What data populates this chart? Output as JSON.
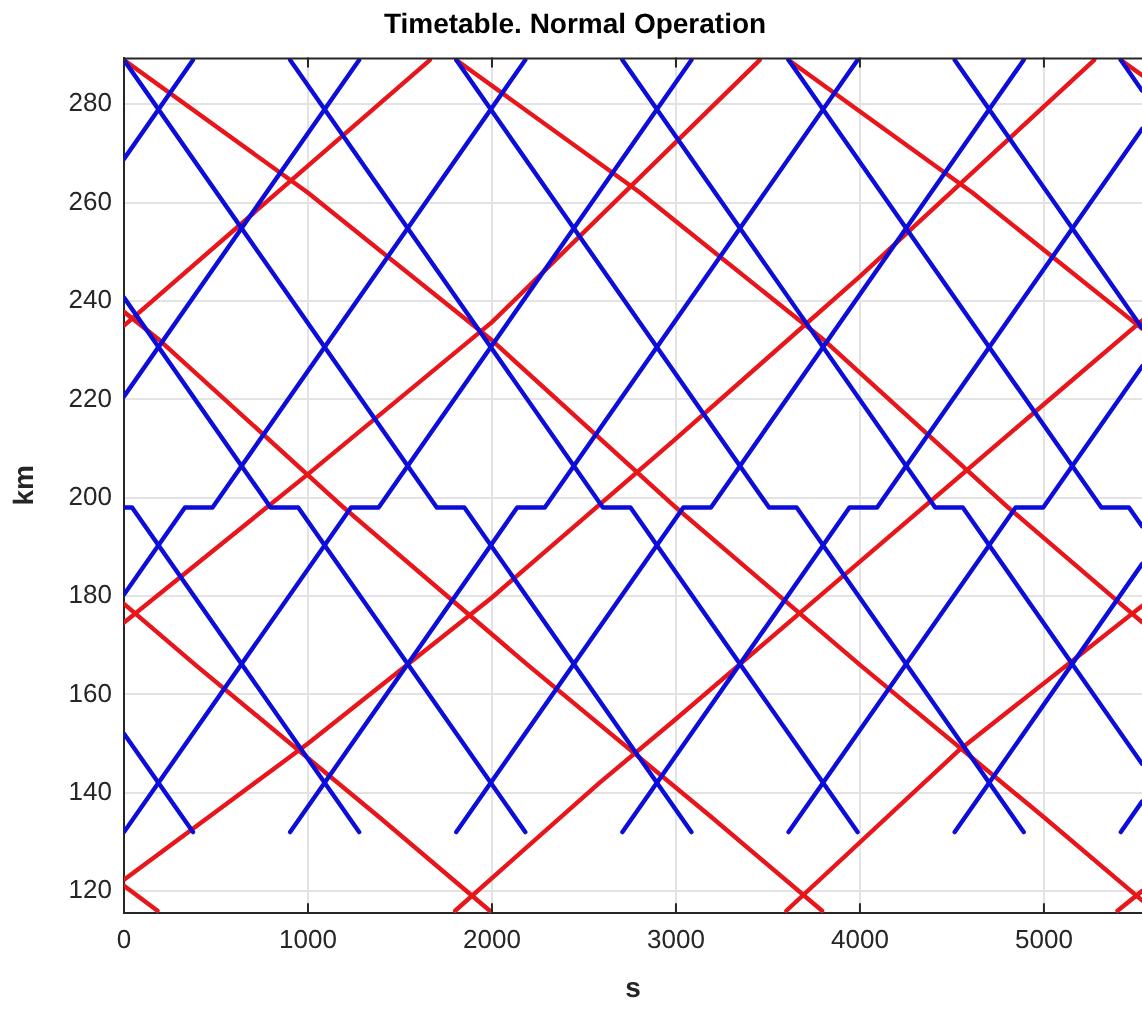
{
  "chart_data": {
    "type": "line",
    "title": "Timetable. Normal Operation",
    "xlabel": "s",
    "ylabel": "km",
    "xlim": [
      0,
      5533
    ],
    "ylim": [
      115.5,
      289.5
    ],
    "xticks": [
      0,
      1000,
      2000,
      3000,
      4000,
      5000
    ],
    "yticks": [
      120,
      140,
      160,
      180,
      200,
      220,
      240,
      260,
      280
    ],
    "grid": true,
    "legend": false,
    "line_style": "solid",
    "series": [
      {
        "color": "#0d0dd9",
        "x": [
          0,
          375
        ],
        "values": [
          152.0,
          132
        ]
      },
      {
        "color": "#0d0dd9",
        "x": [
          0,
          44,
          1278
        ],
        "values": [
          198,
          198,
          132
        ]
      },
      {
        "color": "#0d0dd9",
        "x": [
          0,
          797,
          947,
          2181
        ],
        "values": [
          240.7,
          198,
          198,
          132
        ]
      },
      {
        "color": "#0d0dd9",
        "x": [
          0,
          1700,
          1850,
          3084
        ],
        "values": [
          289,
          198,
          198,
          132
        ]
      },
      {
        "color": "#0d0dd9",
        "x": [
          903,
          2603,
          2753,
          3987
        ],
        "values": [
          289,
          198,
          198,
          132
        ]
      },
      {
        "color": "#0d0dd9",
        "x": [
          1806,
          3506,
          3656,
          4890
        ],
        "values": [
          289,
          198,
          198,
          132
        ]
      },
      {
        "color": "#0d0dd9",
        "x": [
          2709,
          4409,
          4559,
          5533
        ],
        "values": [
          289,
          198,
          198,
          145.9
        ]
      },
      {
        "color": "#0d0dd9",
        "x": [
          3612,
          5312,
          5462,
          5533
        ],
        "values": [
          289,
          198,
          198,
          194.2
        ]
      },
      {
        "color": "#0d0dd9",
        "x": [
          4515,
          5533
        ],
        "values": [
          289,
          234.5
        ]
      },
      {
        "color": "#0d0dd9",
        "x": [
          5418,
          5533
        ],
        "values": [
          289,
          282.8
        ]
      },
      {
        "color": "#0d0dd9",
        "x": [
          0,
          375
        ],
        "values": [
          268.9,
          289
        ]
      },
      {
        "color": "#0d0dd9",
        "x": [
          0,
          1278
        ],
        "values": [
          220.6,
          289
        ]
      },
      {
        "color": "#0d0dd9",
        "x": [
          0,
          331,
          481,
          2181
        ],
        "values": [
          180.3,
          198,
          198,
          289
        ]
      },
      {
        "color": "#0d0dd9",
        "x": [
          0,
          1234,
          1384,
          3084
        ],
        "values": [
          132,
          198,
          198,
          289
        ]
      },
      {
        "color": "#0d0dd9",
        "x": [
          903,
          2137,
          2287,
          3987
        ],
        "values": [
          132,
          198,
          198,
          289
        ]
      },
      {
        "color": "#0d0dd9",
        "x": [
          1806,
          3040,
          3190,
          4890
        ],
        "values": [
          132,
          198,
          198,
          289
        ]
      },
      {
        "color": "#0d0dd9",
        "x": [
          2709,
          3943,
          4093,
          5533
        ],
        "values": [
          132,
          198,
          198,
          275.0
        ]
      },
      {
        "color": "#0d0dd9",
        "x": [
          3612,
          4846,
          4996,
          5533
        ],
        "values": [
          132,
          198,
          198,
          226.7
        ]
      },
      {
        "color": "#0d0dd9",
        "x": [
          4515,
          5533
        ],
        "values": [
          132,
          186.5
        ]
      },
      {
        "color": "#0d0dd9",
        "x": [
          5418,
          5533
        ],
        "values": [
          132,
          138.2
        ]
      },
      {
        "color": "#e8161b",
        "x": [
          0,
          182
        ],
        "values": [
          121.1,
          116
        ]
      },
      {
        "color": "#e8161b",
        "x": [
          0,
          388,
          1388,
          1988
        ],
        "values": [
          178.4,
          166,
          135,
          116
        ]
      },
      {
        "color": "#e8161b",
        "x": [
          0,
          194,
          1194,
          2194,
          3194,
          3794
        ],
        "values": [
          237.8,
          232,
          198,
          166,
          135,
          116
        ]
      },
      {
        "color": "#e8161b",
        "x": [
          0,
          1000,
          2000,
          3000,
          4000,
          5000,
          5533
        ],
        "values": [
          289,
          262,
          232,
          198,
          166,
          135,
          118.1
        ]
      },
      {
        "color": "#e8161b",
        "x": [
          1806,
          2806,
          3806,
          4806,
          5533
        ],
        "values": [
          289,
          262,
          232,
          198,
          174.7
        ]
      },
      {
        "color": "#e8161b",
        "x": [
          3612,
          4612,
          5533
        ],
        "values": [
          289,
          262,
          234.4
        ]
      },
      {
        "color": "#e8161b",
        "x": [
          5418,
          5533
        ],
        "values": [
          289,
          285.9
        ]
      },
      {
        "color": "#e8161b",
        "x": [
          0,
          1662
        ],
        "values": [
          235,
          289
        ]
      },
      {
        "color": "#e8161b",
        "x": [
          0,
          1000,
          2000,
          3455
        ],
        "values": [
          174.6,
          204.8,
          235.7,
          289
        ]
      },
      {
        "color": "#e8161b",
        "x": [
          0,
          1000,
          2000,
          3000,
          4000,
          5273
        ],
        "values": [
          122.3,
          150,
          179.7,
          212,
          245,
          289
        ]
      },
      {
        "color": "#e8161b",
        "x": [
          1800,
          2584,
          3000,
          4000,
          5000,
          5533
        ],
        "values": [
          116,
          142,
          155,
          187,
          219,
          236
        ]
      },
      {
        "color": "#e8161b",
        "x": [
          3600,
          4540,
          5533
        ],
        "values": [
          116,
          148.7,
          178
        ]
      },
      {
        "color": "#e8161b",
        "x": [
          5400,
          5533
        ],
        "values": [
          116,
          120
        ]
      }
    ]
  }
}
